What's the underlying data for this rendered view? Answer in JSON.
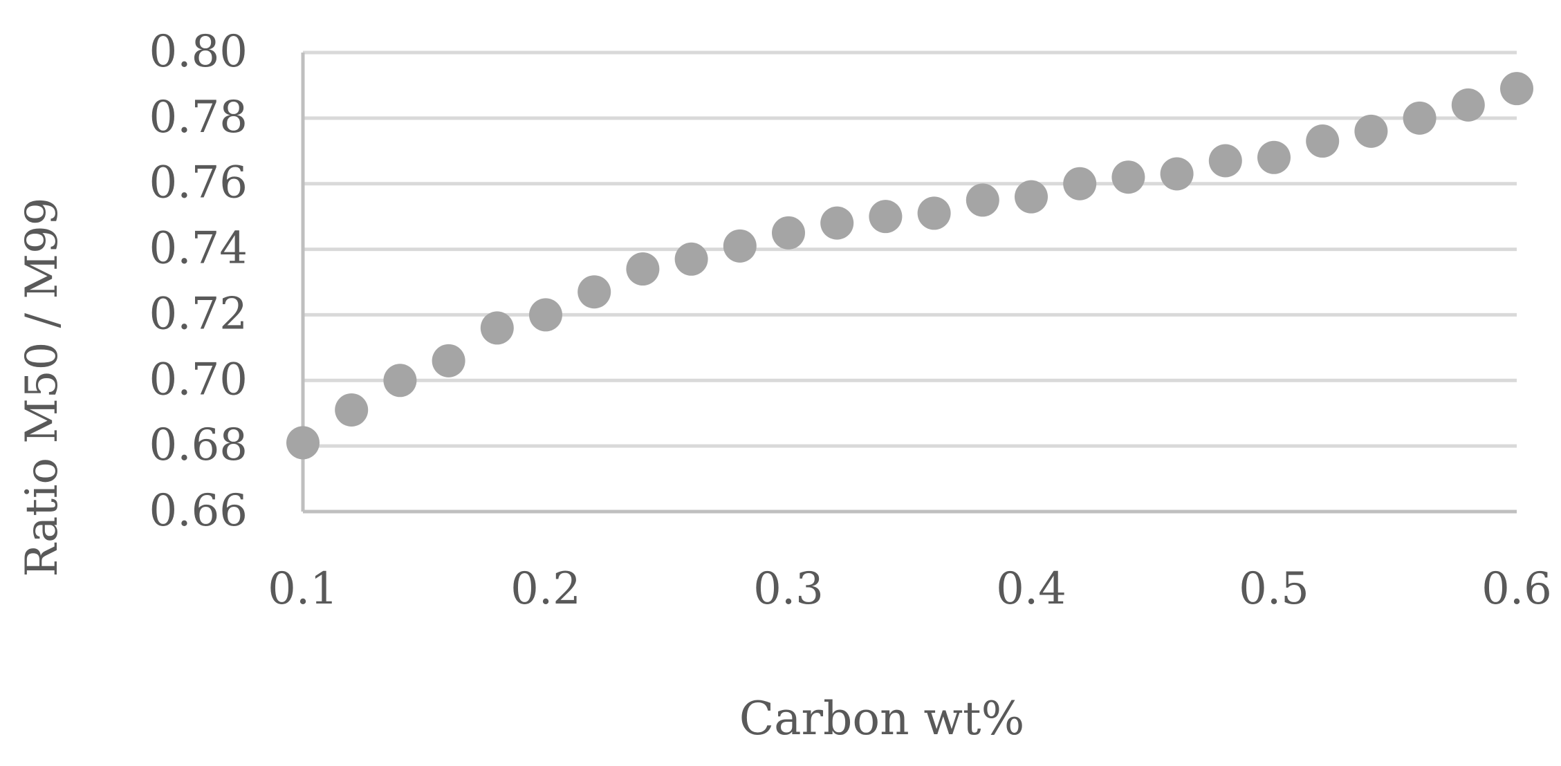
{
  "chart_data": {
    "type": "scatter",
    "title": "",
    "xlabel": "Carbon wt%",
    "ylabel": "Ratio M50 / M99",
    "xlim": [
      0.1,
      0.6
    ],
    "ylim": [
      0.66,
      0.8
    ],
    "x_ticks": [
      "0.1",
      "0.2",
      "0.3",
      "0.4",
      "0.5",
      "0.6"
    ],
    "y_ticks": [
      "0.66",
      "0.68",
      "0.70",
      "0.72",
      "0.74",
      "0.76",
      "0.78",
      "0.80"
    ],
    "grid": "horizontal",
    "legend": "none",
    "colors": {
      "marker": "#A5A5A5",
      "gridline": "#D9D9D9",
      "axis": "#BFBFBF",
      "text": "#595959"
    },
    "series": [
      {
        "x": [
          0.1,
          0.12,
          0.14,
          0.16,
          0.18,
          0.2,
          0.22,
          0.24,
          0.26,
          0.28,
          0.3,
          0.32,
          0.34,
          0.36,
          0.38,
          0.4,
          0.42,
          0.44,
          0.46,
          0.48,
          0.5,
          0.52,
          0.54,
          0.56,
          0.58,
          0.6
        ],
        "y": [
          0.681,
          0.691,
          0.7,
          0.706,
          0.716,
          0.72,
          0.727,
          0.734,
          0.737,
          0.741,
          0.745,
          0.748,
          0.75,
          0.751,
          0.755,
          0.756,
          0.76,
          0.762,
          0.763,
          0.767,
          0.768,
          0.773,
          0.776,
          0.78,
          0.784,
          0.789
        ]
      }
    ]
  }
}
